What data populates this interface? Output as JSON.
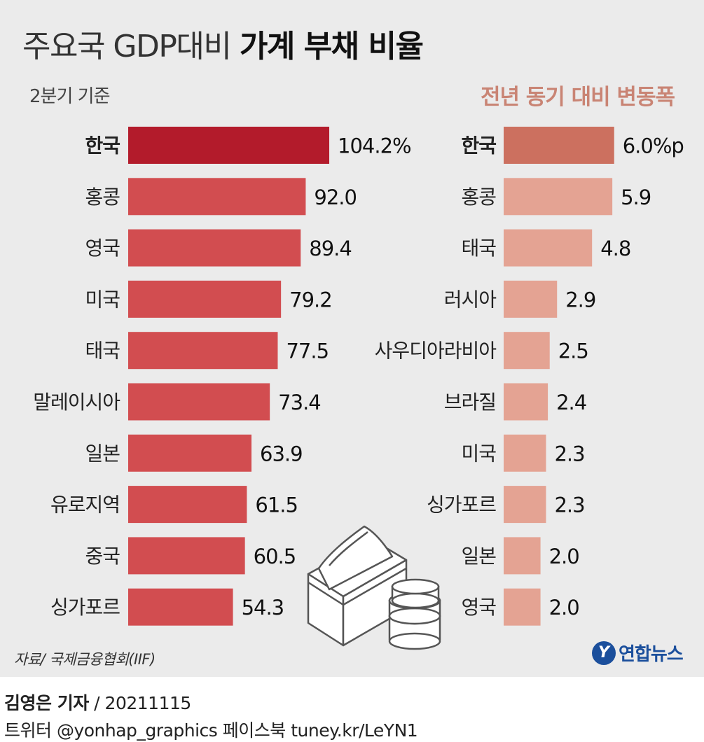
{
  "header": {
    "title_light": "주요국 GDP대비",
    "title_bold": "가계 부채 비율",
    "subtitle": "2분기 기준",
    "right_title": "전년 동기 대비 변동폭"
  },
  "chart_data": [
    {
      "type": "bar",
      "orientation": "horizontal",
      "title": "주요국 GDP대비 가계 부채 비율",
      "subtitle": "2분기 기준",
      "categories": [
        "한국",
        "홍콩",
        "영국",
        "미국",
        "태국",
        "말레이시아",
        "일본",
        "유로지역",
        "중국",
        "싱가포르"
      ],
      "values": [
        104.2,
        92.0,
        89.4,
        79.2,
        77.5,
        73.4,
        63.9,
        61.5,
        60.5,
        54.3
      ],
      "value_labels": [
        "104.2%",
        "92.0",
        "89.4",
        "79.2",
        "77.5",
        "73.4",
        "63.9",
        "61.5",
        "60.5",
        "54.3"
      ],
      "highlight_index": 0,
      "colors": {
        "highlight": "#b31b2b",
        "default": "#d24d50"
      },
      "xlim": [
        0,
        110
      ]
    },
    {
      "type": "bar",
      "orientation": "horizontal",
      "title": "전년 동기 대비 변동폭",
      "categories": [
        "한국",
        "홍콩",
        "태국",
        "러시아",
        "사우디아라비아",
        "브라질",
        "미국",
        "싱가포르",
        "일본",
        "영국"
      ],
      "values": [
        6.0,
        5.9,
        4.8,
        2.9,
        2.5,
        2.4,
        2.3,
        2.3,
        2.0,
        2.0
      ],
      "value_labels": [
        "6.0%p",
        "5.9",
        "4.8",
        "2.9",
        "2.5",
        "2.4",
        "2.3",
        "2.3",
        "2.0",
        "2.0"
      ],
      "highlight_index": 0,
      "colors": {
        "highlight": "#cc705f",
        "default": "#e4a393"
      },
      "xlim": [
        0,
        6.2
      ]
    }
  ],
  "footer": {
    "source": "자료/ 국제금융협회(IIF)",
    "logo_mark": "Y",
    "logo_text": "연합뉴스",
    "reporter": "김영은 기자",
    "date": "/ 20211115",
    "social": "트위터 @yonhap_graphics  페이스북 tuney.kr/LeYN1"
  },
  "icons": [
    "money-stack-icon",
    "coins-icon"
  ]
}
